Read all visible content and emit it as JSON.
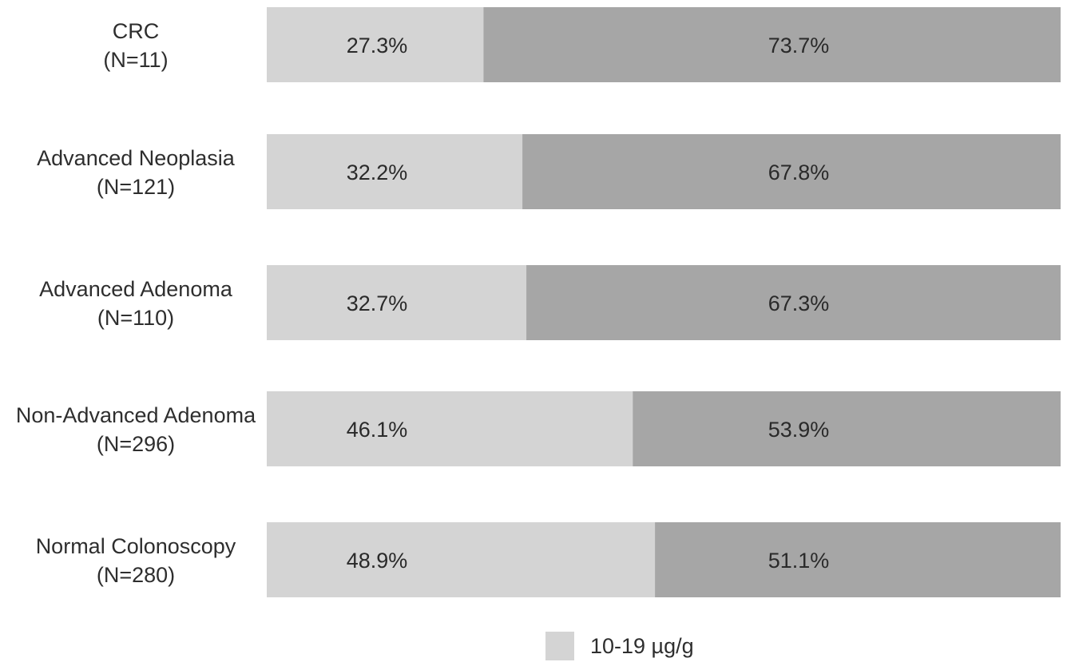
{
  "chart_data": {
    "type": "bar",
    "orientation": "horizontal",
    "stacked": true,
    "percent_stacked": true,
    "title": "",
    "xlabel": "",
    "ylabel": "",
    "xlim": [
      0,
      100
    ],
    "grid": false,
    "legend_position": "bottom",
    "categories": [
      {
        "name": "CRC",
        "n": "(N=11)"
      },
      {
        "name": "Advanced Neoplasia",
        "n": "(N=121)"
      },
      {
        "name": "Advanced Adenoma",
        "n": "(N=110)"
      },
      {
        "name": "Non-Advanced Adenoma",
        "n": "(N=296)"
      },
      {
        "name": "Normal Colonoscopy",
        "n": "(N=280)"
      }
    ],
    "series": [
      {
        "name": "10-19 µg/g",
        "color": "#d4d4d4",
        "values": [
          27.3,
          32.2,
          32.7,
          46.1,
          48.9
        ],
        "labels": [
          "27.3%",
          "32.2%",
          "32.7%",
          "46.1%",
          "48.9%"
        ]
      },
      {
        "name": "",
        "color": "#a6a6a6",
        "values": [
          73.7,
          67.8,
          67.3,
          53.9,
          51.1
        ],
        "labels": [
          "73.7%",
          "67.8%",
          "67.3%",
          "53.9%",
          "51.1%"
        ]
      }
    ]
  }
}
